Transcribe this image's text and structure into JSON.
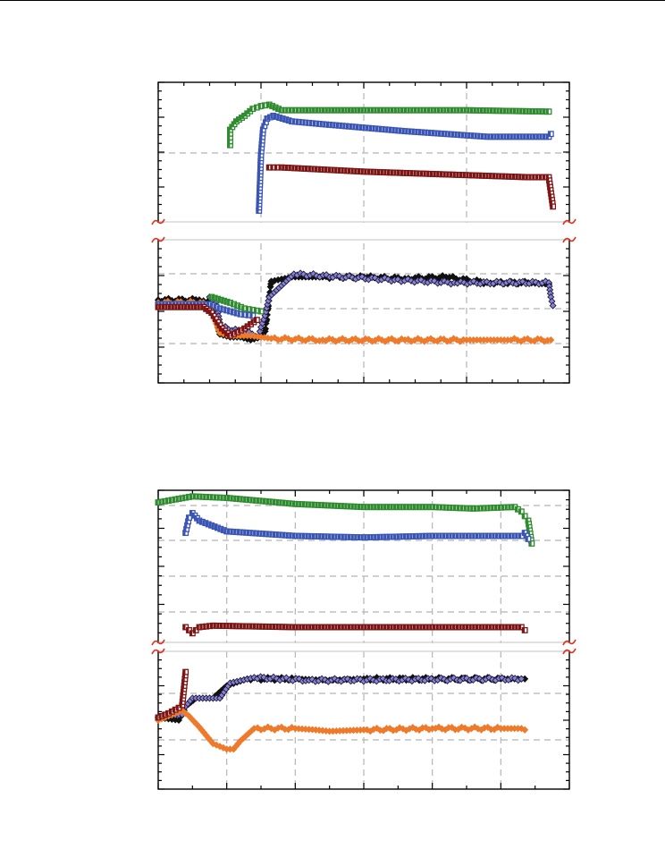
{
  "colors": {
    "green": "#2e8b2e",
    "blue": "#3a55b4",
    "darkred": "#7d1515",
    "black": "#111111",
    "purple": "#8a82d6",
    "orange": "#ee7a2a",
    "grid": "#b5b5b5",
    "axis_break": "#e0311d"
  },
  "chart_data": [
    {
      "type": "scatter",
      "title": "",
      "xlabel": "",
      "ylabel": "",
      "xlim": [
        0,
        20
      ],
      "grid": true,
      "axis_break": true,
      "upper_panel": {
        "ylim": [
          0,
          10
        ]
      },
      "lower_panel": {
        "ylim": [
          0,
          10
        ]
      },
      "series": [
        {
          "panel": "upper",
          "color": "green",
          "marker": "square",
          "points": [
            [
              3.5,
              5.5
            ],
            [
              3.5,
              6.6
            ],
            [
              3.6,
              6.8
            ],
            [
              3.8,
              7.2
            ],
            [
              4.2,
              7.6
            ],
            [
              4.6,
              8.1
            ],
            [
              5,
              8.3
            ],
            [
              5.4,
              8.4
            ],
            [
              6,
              8.0
            ],
            [
              7,
              8.0
            ],
            [
              10,
              8.0
            ],
            [
              15,
              8.0
            ],
            [
              19,
              7.9
            ]
          ]
        },
        {
          "panel": "upper",
          "color": "blue",
          "marker": "square",
          "points": [
            [
              4.9,
              0.8
            ],
            [
              5,
              4.8
            ],
            [
              5.1,
              6.6
            ],
            [
              5.3,
              7.4
            ],
            [
              5.6,
              7.6
            ],
            [
              6.5,
              7.2
            ],
            [
              8,
              7.0
            ],
            [
              12,
              6.5
            ],
            [
              16,
              6.1
            ],
            [
              19,
              6.1
            ],
            [
              19.1,
              6.3
            ]
          ]
        },
        {
          "panel": "upper",
          "color": "darkred",
          "marker": "square",
          "points": [
            [
              5.4,
              3.9
            ],
            [
              6,
              3.9
            ],
            [
              10,
              3.6
            ],
            [
              14,
              3.4
            ],
            [
              18,
              3.2
            ],
            [
              19,
              3.2
            ],
            [
              19.2,
              1.1
            ]
          ]
        },
        {
          "panel": "lower",
          "color": "black",
          "marker": "diamond",
          "points": [
            [
              0,
              5.8
            ],
            [
              2,
              5.8
            ],
            [
              2.6,
              5.6
            ],
            [
              3,
              3.4
            ],
            [
              3.5,
              3.2
            ],
            [
              4,
              3.2
            ],
            [
              4.5,
              3.0
            ],
            [
              5,
              3.2
            ],
            [
              5.2,
              3.6
            ],
            [
              5.5,
              7.1
            ],
            [
              6.5,
              7.4
            ],
            [
              8,
              7.4
            ],
            [
              10,
              7.4
            ],
            [
              12,
              7.3
            ],
            [
              14,
              7.4
            ],
            [
              16,
              7.0
            ],
            [
              18,
              7.0
            ],
            [
              19,
              6.9
            ]
          ]
        },
        {
          "panel": "lower",
          "color": "purple",
          "marker": "diamond",
          "points": [
            [
              2.5,
              6.0
            ],
            [
              2.8,
              5.6
            ],
            [
              3.0,
              4.2
            ],
            [
              3.1,
              3.9
            ],
            [
              4.9,
              3.3
            ],
            [
              5.0,
              3.9
            ],
            [
              5.2,
              4.7
            ],
            [
              5.4,
              6.0
            ],
            [
              6.6,
              7.6
            ],
            [
              11.5,
              7.2
            ],
            [
              14.4,
              7.0
            ],
            [
              19,
              7.0
            ],
            [
              19.1,
              6.0
            ],
            [
              19.2,
              5.4
            ]
          ]
        },
        {
          "panel": "lower",
          "color": "orange",
          "marker": "diamond",
          "points": [
            [
              0,
              5.6
            ],
            [
              2.2,
              5.6
            ],
            [
              2.6,
              5.0
            ],
            [
              3.0,
              3.5
            ],
            [
              3.5,
              3.3
            ],
            [
              4.5,
              3.3
            ],
            [
              5,
              3.2
            ],
            [
              5.5,
              3.1
            ],
            [
              8,
              3.0
            ],
            [
              12,
              3.0
            ],
            [
              15,
              3.0
            ],
            [
              16,
              3.0
            ],
            [
              17,
              3.0
            ],
            [
              19.1,
              3.0
            ]
          ]
        },
        {
          "panel": "lower",
          "color": "green",
          "marker": "square",
          "points": [
            [
              2.6,
              6.0
            ],
            [
              3.5,
              5.6
            ],
            [
              4.2,
              5.2
            ],
            [
              4.6,
              5.1
            ],
            [
              5.0,
              5.0
            ]
          ]
        },
        {
          "panel": "lower",
          "color": "blue",
          "marker": "square",
          "points": [
            [
              0,
              5.5
            ],
            [
              2.5,
              5.5
            ],
            [
              3.0,
              5.2
            ],
            [
              4.0,
              4.8
            ],
            [
              4.6,
              4.7
            ]
          ]
        },
        {
          "panel": "lower",
          "color": "darkred",
          "marker": "square",
          "points": [
            [
              0,
              5.3
            ],
            [
              2.2,
              5.3
            ],
            [
              2.6,
              4.9
            ],
            [
              3.1,
              3.8
            ],
            [
              3.5,
              3.3
            ],
            [
              4.2,
              3.8
            ],
            [
              4.8,
              4.4
            ]
          ]
        }
      ]
    },
    {
      "type": "scatter",
      "title": "",
      "xlabel": "",
      "ylabel": "",
      "xlim": [
        0,
        6
      ],
      "grid": true,
      "axis_break": true,
      "upper_panel": {
        "ylim": [
          0,
          10
        ]
      },
      "lower_panel": {
        "ylim": [
          0,
          10
        ]
      },
      "series": [
        {
          "panel": "upper",
          "color": "green",
          "marker": "square",
          "points": [
            [
              0,
              9.2
            ],
            [
              0.5,
              9.6
            ],
            [
              1,
              9.5
            ],
            [
              2,
              9.1
            ],
            [
              3,
              8.9
            ],
            [
              4,
              8.9
            ],
            [
              4.6,
              8.8
            ],
            [
              5.2,
              8.9
            ],
            [
              5.3,
              8.6
            ],
            [
              5.35,
              8.3
            ],
            [
              5.4,
              8.0
            ],
            [
              5.45,
              6.5
            ]
          ]
        },
        {
          "panel": "upper",
          "color": "blue",
          "marker": "square",
          "points": [
            [
              0.4,
              7.2
            ],
            [
              0.45,
              8.2
            ],
            [
              0.5,
              8.5
            ],
            [
              0.6,
              8.0
            ],
            [
              1,
              7.3
            ],
            [
              2,
              7.0
            ],
            [
              3,
              6.9
            ],
            [
              4,
              7.0
            ],
            [
              5.3,
              7.0
            ],
            [
              5.35,
              7.2
            ],
            [
              5.4,
              6.8
            ]
          ]
        },
        {
          "panel": "upper",
          "color": "darkred",
          "marker": "square",
          "points": [
            [
              0.4,
              1.0
            ],
            [
              0.5,
              0.6
            ],
            [
              0.55,
              0.8
            ],
            [
              0.6,
              1.0
            ],
            [
              0.8,
              1.1
            ],
            [
              2,
              1.0
            ],
            [
              3,
              1.0
            ],
            [
              4,
              1.0
            ],
            [
              5.3,
              1.0
            ],
            [
              5.35,
              0.8
            ]
          ]
        },
        {
          "panel": "lower",
          "color": "black",
          "marker": "diamond",
          "points": [
            [
              0,
              5.2
            ],
            [
              0.3,
              5.0
            ],
            [
              0.4,
              6.0
            ],
            [
              0.55,
              6.6
            ],
            [
              0.8,
              6.6
            ],
            [
              1.0,
              7.5
            ],
            [
              1.3,
              8.0
            ],
            [
              2,
              8.0
            ],
            [
              2.5,
              7.9
            ],
            [
              3,
              8.0
            ],
            [
              4,
              8.0
            ],
            [
              5,
              8.0
            ],
            [
              5.35,
              8.0
            ]
          ]
        },
        {
          "panel": "lower",
          "color": "purple",
          "marker": "diamond",
          "points": [
            [
              0,
              5.2
            ],
            [
              0.35,
              5.4
            ],
            [
              0.4,
              6.0
            ],
            [
              0.5,
              6.6
            ],
            [
              0.9,
              6.6
            ],
            [
              1.05,
              7.7
            ],
            [
              1.4,
              8.1
            ],
            [
              2.2,
              7.9
            ],
            [
              5.3,
              8.0
            ]
          ]
        },
        {
          "panel": "lower",
          "color": "orange",
          "marker": "diamond",
          "points": [
            [
              0,
              5.0
            ],
            [
              0.2,
              5.4
            ],
            [
              0.35,
              5.7
            ],
            [
              0.45,
              5.3
            ],
            [
              0.6,
              4.5
            ],
            [
              0.8,
              3.3
            ],
            [
              1.0,
              2.9
            ],
            [
              1.1,
              2.9
            ],
            [
              1.2,
              3.5
            ],
            [
              1.4,
              4.4
            ],
            [
              2,
              4.4
            ],
            [
              2.3,
              4.3
            ],
            [
              2.5,
              4.2
            ],
            [
              3,
              4.3
            ],
            [
              4,
              4.4
            ],
            [
              5,
              4.4
            ],
            [
              5.3,
              4.4
            ],
            [
              5.35,
              4.3
            ]
          ]
        },
        {
          "panel": "lower",
          "color": "darkred",
          "marker": "square",
          "points": [
            [
              0,
              5.2
            ],
            [
              0.15,
              5.5
            ],
            [
              0.3,
              5.9
            ],
            [
              0.35,
              6.1
            ],
            [
              0.38,
              7.5
            ],
            [
              0.4,
              8.5
            ]
          ]
        }
      ]
    }
  ]
}
